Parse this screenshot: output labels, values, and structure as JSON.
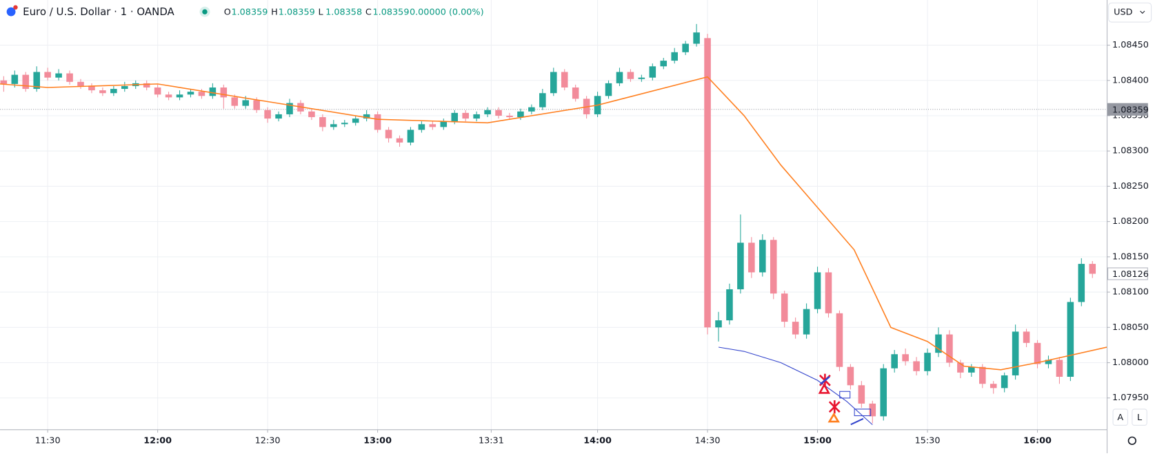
{
  "header": {
    "title": "Euro / U.S. Dollar · 1 · OANDA",
    "ohlc_labels": [
      "O",
      "H",
      "L",
      "C"
    ],
    "ohlc_values": [
      1.08359,
      1.08359,
      1.08358,
      1.08359
    ],
    "change": "0.00000 (0.00%)"
  },
  "ui": {
    "currency": "USD",
    "auto": "A",
    "log": "L"
  },
  "chart_data": {
    "type": "candlestick",
    "x": [
      "11:18",
      "11:21",
      "11:24",
      "11:27",
      "11:30",
      "11:33",
      "11:36",
      "11:39",
      "11:42",
      "11:45",
      "11:48",
      "11:51",
      "11:54",
      "11:57",
      "12:00",
      "12:03",
      "12:06",
      "12:09",
      "12:12",
      "12:15",
      "12:18",
      "12:21",
      "12:24",
      "12:27",
      "12:30",
      "12:33",
      "12:36",
      "12:39",
      "12:42",
      "12:45",
      "12:48",
      "12:51",
      "12:54",
      "12:57",
      "13:00",
      "13:03",
      "13:06",
      "13:09",
      "13:12",
      "13:15",
      "13:18",
      "13:21",
      "13:24",
      "13:27",
      "13:30",
      "13:33",
      "13:36",
      "13:39",
      "13:42",
      "13:45",
      "13:48",
      "13:51",
      "13:54",
      "13:57",
      "14:00",
      "14:03",
      "14:06",
      "14:09",
      "14:12",
      "14:15",
      "14:18",
      "14:21",
      "14:24",
      "14:27",
      "14:30",
      "14:33",
      "14:36",
      "14:39",
      "14:42",
      "14:45",
      "14:48",
      "14:51",
      "14:54",
      "14:57",
      "15:00",
      "15:03",
      "15:06",
      "15:09",
      "15:12",
      "15:15",
      "15:18",
      "15:21",
      "15:24",
      "15:27",
      "15:30",
      "15:33",
      "15:36",
      "15:39",
      "15:42",
      "15:45",
      "15:48",
      "15:51",
      "15:54",
      "15:57",
      "16:00",
      "16:03",
      "16:06",
      "16:09",
      "16:12",
      "16:15"
    ],
    "open": [
      1.084,
      1.08395,
      1.08408,
      1.08388,
      1.08412,
      1.08404,
      1.0841,
      1.08398,
      1.08392,
      1.08386,
      1.08382,
      1.08388,
      1.08392,
      1.08396,
      1.0839,
      1.0838,
      1.08376,
      1.0838,
      1.08384,
      1.08378,
      1.0839,
      1.08376,
      1.08364,
      1.08372,
      1.08358,
      1.08346,
      1.08352,
      1.08368,
      1.08356,
      1.08348,
      1.08334,
      1.08338,
      1.0834,
      1.08346,
      1.08352,
      1.0833,
      1.08318,
      1.08312,
      1.0833,
      1.08338,
      1.08334,
      1.08342,
      1.08354,
      1.08346,
      1.08352,
      1.08358,
      1.0835,
      1.08348,
      1.08356,
      1.08362,
      1.08382,
      1.08412,
      1.0839,
      1.08374,
      1.08352,
      1.08378,
      1.08396,
      1.08412,
      1.08402,
      1.08404,
      1.0842,
      1.08428,
      1.0844,
      1.08452,
      1.0846,
      1.0805,
      1.0806,
      1.08104,
      1.0817,
      1.08128,
      1.08174,
      1.08098,
      1.08058,
      1.0804,
      1.08076,
      1.08128,
      1.0807,
      1.07994,
      1.07968,
      1.07942,
      1.07924,
      1.07992,
      1.08012,
      1.08002,
      1.07988,
      1.08014,
      1.0804,
      1.08,
      1.07986,
      1.07994,
      1.0797,
      1.07964,
      1.07982,
      1.08044,
      1.08028,
      1.07998,
      1.08004,
      1.0798,
      1.08086,
      1.0814
    ],
    "high": [
      1.08406,
      1.08414,
      1.08412,
      1.0842,
      1.08418,
      1.08416,
      1.08414,
      1.08402,
      1.08396,
      1.0839,
      1.08392,
      1.08398,
      1.084,
      1.084,
      1.08394,
      1.08384,
      1.08386,
      1.08388,
      1.08388,
      1.08396,
      1.08394,
      1.0838,
      1.08378,
      1.08376,
      1.08362,
      1.08356,
      1.08374,
      1.08372,
      1.0836,
      1.08352,
      1.08344,
      1.08344,
      1.0835,
      1.08358,
      1.08356,
      1.08334,
      1.08322,
      1.08334,
      1.08342,
      1.08342,
      1.08346,
      1.08358,
      1.08358,
      1.08356,
      1.08362,
      1.08362,
      1.08354,
      1.0836,
      1.08366,
      1.08388,
      1.08418,
      1.08416,
      1.08394,
      1.08378,
      1.08384,
      1.084,
      1.08418,
      1.08416,
      1.08408,
      1.08424,
      1.08432,
      1.08446,
      1.08456,
      1.0848,
      1.08466,
      1.08072,
      1.08112,
      1.0821,
      1.08178,
      1.08182,
      1.08178,
      1.08102,
      1.08064,
      1.08084,
      1.08136,
      1.08134,
      1.08074,
      1.07998,
      1.07974,
      1.07946,
      1.07998,
      1.08018,
      1.0802,
      1.08008,
      1.0802,
      1.0805,
      1.08046,
      1.08004,
      1.07998,
      1.07998,
      1.07974,
      1.07986,
      1.08054,
      1.08048,
      1.08032,
      1.0801,
      1.08008,
      1.08092,
      1.08148,
      1.08144
    ],
    "low": [
      1.08384,
      1.0839,
      1.08384,
      1.08384,
      1.084,
      1.084,
      1.08394,
      1.08388,
      1.08382,
      1.08378,
      1.08378,
      1.08384,
      1.08388,
      1.08386,
      1.08376,
      1.08372,
      1.08372,
      1.08376,
      1.08374,
      1.08374,
      1.0836,
      1.0836,
      1.0836,
      1.08354,
      1.0834,
      1.08342,
      1.08348,
      1.08352,
      1.08344,
      1.08328,
      1.0833,
      1.08334,
      1.08336,
      1.08342,
      1.08326,
      1.08312,
      1.08306,
      1.08308,
      1.08326,
      1.0833,
      1.0833,
      1.08338,
      1.08342,
      1.08342,
      1.08348,
      1.08346,
      1.08344,
      1.08344,
      1.08352,
      1.08358,
      1.08378,
      1.08386,
      1.0837,
      1.08346,
      1.08348,
      1.08374,
      1.08392,
      1.08398,
      1.08398,
      1.084,
      1.08416,
      1.08424,
      1.08436,
      1.08448,
      1.0804,
      1.0803,
      1.08054,
      1.08098,
      1.0812,
      1.08122,
      1.0809,
      1.0805,
      1.08034,
      1.08034,
      1.0807,
      1.08064,
      1.07988,
      1.07962,
      1.07936,
      1.07914,
      1.07918,
      1.07986,
      1.07996,
      1.07982,
      1.07982,
      1.08008,
      1.07994,
      1.07978,
      1.0798,
      1.07964,
      1.07956,
      1.07958,
      1.07976,
      1.08022,
      1.07992,
      1.07992,
      1.0797,
      1.07974,
      1.0808,
      1.0812
    ],
    "close": [
      1.08395,
      1.08408,
      1.08388,
      1.08412,
      1.08404,
      1.0841,
      1.08398,
      1.08392,
      1.08386,
      1.08382,
      1.08388,
      1.08392,
      1.08396,
      1.0839,
      1.0838,
      1.08376,
      1.0838,
      1.08384,
      1.08378,
      1.0839,
      1.08376,
      1.08364,
      1.08372,
      1.08358,
      1.08346,
      1.08352,
      1.08368,
      1.08356,
      1.08348,
      1.08334,
      1.08338,
      1.0834,
      1.08346,
      1.08352,
      1.0833,
      1.08318,
      1.08312,
      1.0833,
      1.08338,
      1.08334,
      1.08342,
      1.08354,
      1.08346,
      1.08352,
      1.08358,
      1.0835,
      1.08348,
      1.08356,
      1.08362,
      1.08382,
      1.08412,
      1.0839,
      1.08374,
      1.08352,
      1.08378,
      1.08396,
      1.08412,
      1.08402,
      1.08404,
      1.0842,
      1.08428,
      1.0844,
      1.08452,
      1.08468,
      1.0805,
      1.0806,
      1.08104,
      1.0817,
      1.08128,
      1.08174,
      1.08098,
      1.08058,
      1.0804,
      1.08076,
      1.08128,
      1.0807,
      1.07994,
      1.07968,
      1.07942,
      1.07924,
      1.07992,
      1.08012,
      1.08002,
      1.07988,
      1.08014,
      1.0804,
      1.08,
      1.07986,
      1.07994,
      1.0797,
      1.07964,
      1.07982,
      1.08044,
      1.08028,
      1.07998,
      1.08004,
      1.0798,
      1.08086,
      1.0814,
      1.08126
    ],
    "up_color": "#26a69a",
    "down_color": "#f28b9a",
    "ema": {
      "color": "#ff7f1f",
      "x": [
        "11:17",
        "11:30",
        "12:00",
        "12:30",
        "13:00",
        "13:30",
        "14:00",
        "14:30",
        "14:40",
        "14:50",
        "15:00",
        "15:10",
        "15:20",
        "15:30",
        "15:40",
        "15:50",
        "16:00",
        "16:19"
      ],
      "values": [
        1.08395,
        1.0839,
        1.08395,
        1.0837,
        1.08345,
        1.0834,
        1.08365,
        1.08405,
        1.0835,
        1.0828,
        1.0822,
        1.0816,
        1.0805,
        1.0803,
        1.07995,
        1.0799,
        1.08,
        1.08022
      ]
    },
    "curve": {
      "color": "#3344cc",
      "x": [
        "14:33",
        "14:40",
        "14:50",
        "15:00",
        "15:08",
        "15:15"
      ],
      "values": [
        1.08022,
        1.08016,
        1.08,
        1.07975,
        1.07945,
        1.07912
      ]
    },
    "last_price": 1.08359,
    "current_price": 1.08126,
    "xlim": [
      "11:17",
      "16:19"
    ],
    "ylim": [
      1.07905,
      1.08514
    ],
    "xticks": [
      "11:30",
      "12:00",
      "12:30",
      "13:00",
      "13:31",
      "14:00",
      "14:30",
      "15:00",
      "15:30",
      "16:00"
    ],
    "yticks": [
      {
        "value": 1.0795,
        "label": "1.07950"
      },
      {
        "value": 1.08,
        "label": "1.08000"
      },
      {
        "value": 1.0805,
        "label": "1.08050"
      },
      {
        "value": 1.081,
        "label": "1.08100"
      },
      {
        "value": 1.0815,
        "label": "1.08150"
      },
      {
        "value": 1.082,
        "label": "1.08200"
      },
      {
        "value": 1.0825,
        "label": "1.08250"
      },
      {
        "value": 1.083,
        "label": "1.08300"
      },
      {
        "value": 1.0835,
        "label": "1.08350"
      },
      {
        "value": 1.084,
        "label": "1.08400"
      },
      {
        "value": 1.0845,
        "label": "1.08450"
      }
    ],
    "grid": true
  }
}
